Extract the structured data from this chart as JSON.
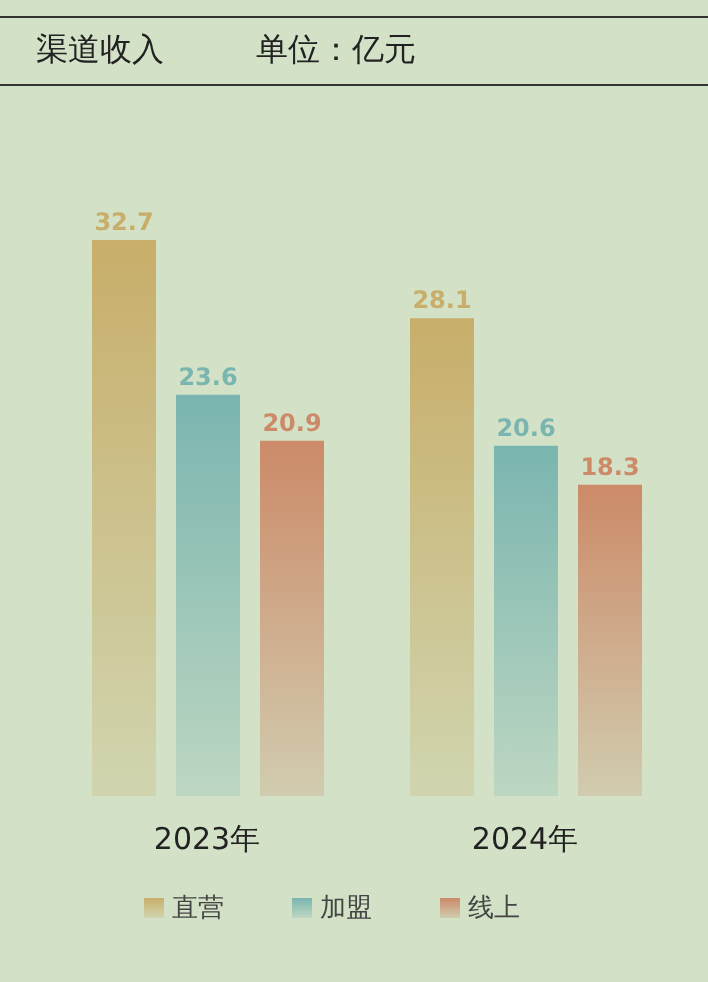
{
  "chart_data": {
    "type": "bar",
    "title": "渠道收入",
    "subtitle": "单位：亿元",
    "categories": [
      "2023年",
      "2024年"
    ],
    "series": [
      {
        "name": "直营",
        "color": "#c8ae6a",
        "values": [
          32.7,
          28.1
        ]
      },
      {
        "name": "加盟",
        "color": "#7ab5b0",
        "values": [
          23.6,
          20.6
        ]
      },
      {
        "name": "线上",
        "color": "#cc8a68",
        "values": [
          20.9,
          18.3
        ]
      }
    ],
    "data_labels": true,
    "grid": false,
    "legend": "bottom"
  }
}
